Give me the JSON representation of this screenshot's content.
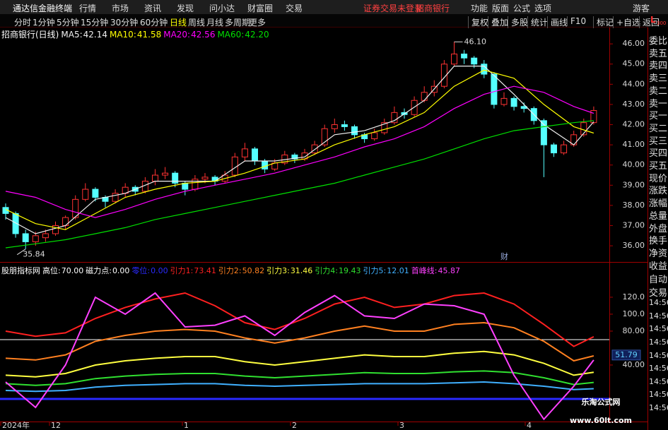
{
  "menu": {
    "app": "通达信金融终端",
    "items": [
      "行情",
      "市场",
      "资讯",
      "发现",
      "问小达",
      "财富圈",
      "交易"
    ],
    "status": [
      "证券交易未登录",
      "招商银行"
    ],
    "right": [
      "功能",
      "版面",
      "公式",
      "选项"
    ],
    "user": "游客"
  },
  "toolbar": {
    "periods": [
      "分时",
      "1分钟",
      "5分钟",
      "15分钟",
      "30分钟",
      "60分钟",
      "日线",
      "周线",
      "月线",
      "多周期",
      "更多"
    ],
    "active_index": 6,
    "right": [
      "复权",
      "叠加",
      "多股",
      "统计",
      "画线",
      "F10",
      "标记",
      "+自选",
      "返回"
    ],
    "badge": [
      "L",
      "300"
    ]
  },
  "side_panel": {
    "quote_items": [
      "委比",
      "卖五",
      "卖四",
      "卖三",
      "卖二",
      "卖一",
      "买一",
      "买二",
      "买三",
      "买四",
      "买五",
      "现价",
      "涨跌",
      "涨幅",
      "总量",
      "外盘",
      "换手",
      "净资",
      "收益"
    ],
    "trade_items": [
      "自动",
      "交易",
      "14:56",
      "14:56",
      "14:56",
      "14:56",
      "14:56",
      "14:56",
      "14:56",
      "14:56",
      "14:56"
    ]
  },
  "x_labels": [
    "2024年",
    "12",
    "1",
    "2",
    "3",
    "4"
  ],
  "watermark": [
    "乐淘公式网",
    "www.60lt.com"
  ],
  "chart_data": [
    {
      "type": "candlestick",
      "title": "招商银行(日线)",
      "up_color": "#ff3232",
      "down_color": "#54ffff",
      "candles": [
        [
          37.9,
          38.1,
          37.3,
          37.6
        ],
        [
          37.6,
          37.7,
          36.4,
          36.6
        ],
        [
          36.6,
          36.8,
          35.84,
          36.2
        ],
        [
          36.2,
          36.7,
          36.0,
          36.5
        ],
        [
          36.4,
          36.8,
          36.2,
          36.6
        ],
        [
          36.6,
          37.2,
          36.5,
          37.0
        ],
        [
          37.0,
          37.5,
          36.8,
          37.4
        ],
        [
          37.4,
          38.5,
          37.3,
          38.3
        ],
        [
          38.3,
          39.1,
          38.2,
          38.8
        ],
        [
          38.8,
          38.9,
          38.2,
          38.4
        ],
        [
          38.4,
          38.5,
          37.9,
          38.2
        ],
        [
          38.2,
          38.8,
          38.1,
          38.6
        ],
        [
          38.6,
          39.1,
          38.4,
          38.9
        ],
        [
          38.9,
          39.0,
          38.5,
          38.7
        ],
        [
          38.7,
          39.4,
          38.6,
          39.2
        ],
        [
          39.2,
          39.8,
          39.0,
          39.5
        ],
        [
          39.5,
          39.9,
          39.3,
          39.6
        ],
        [
          39.6,
          39.7,
          38.9,
          39.1
        ],
        [
          39.1,
          39.2,
          38.5,
          38.8
        ],
        [
          38.8,
          39.5,
          38.7,
          39.3
        ],
        [
          39.3,
          39.6,
          39.1,
          39.4
        ],
        [
          39.4,
          39.5,
          39.0,
          39.2
        ],
        [
          39.2,
          39.7,
          39.1,
          39.5
        ],
        [
          39.5,
          40.6,
          39.4,
          40.4
        ],
        [
          40.4,
          41.1,
          40.2,
          40.8
        ],
        [
          40.8,
          40.9,
          40.0,
          40.2
        ],
        [
          40.2,
          40.3,
          39.6,
          39.8
        ],
        [
          39.8,
          40.3,
          39.7,
          40.1
        ],
        [
          40.1,
          40.7,
          40.0,
          40.5
        ],
        [
          40.5,
          40.6,
          40.1,
          40.3
        ],
        [
          40.3,
          40.8,
          40.2,
          40.6
        ],
        [
          40.6,
          41.2,
          40.5,
          41.0
        ],
        [
          41.0,
          42.0,
          40.9,
          41.8
        ],
        [
          41.8,
          42.3,
          41.6,
          42.0
        ],
        [
          42.0,
          42.2,
          41.7,
          41.9
        ],
        [
          41.9,
          42.0,
          41.3,
          41.5
        ],
        [
          41.5,
          41.6,
          41.1,
          41.3
        ],
        [
          41.3,
          41.8,
          41.2,
          41.6
        ],
        [
          41.6,
          42.3,
          41.5,
          42.1
        ],
        [
          42.1,
          42.9,
          42.0,
          42.6
        ],
        [
          42.6,
          42.8,
          42.3,
          42.5
        ],
        [
          42.5,
          43.4,
          42.4,
          43.2
        ],
        [
          43.2,
          43.9,
          43.1,
          43.6
        ],
        [
          43.6,
          44.2,
          43.4,
          43.9
        ],
        [
          43.9,
          45.2,
          43.8,
          45.0
        ],
        [
          45.0,
          46.1,
          44.9,
          45.5
        ],
        [
          45.5,
          45.7,
          45.0,
          45.3
        ],
        [
          45.3,
          45.4,
          44.8,
          45.0
        ],
        [
          45.0,
          45.2,
          44.3,
          44.5
        ],
        [
          44.5,
          44.6,
          42.8,
          43.0
        ],
        [
          43.0,
          43.6,
          42.9,
          43.3
        ],
        [
          43.3,
          43.4,
          42.7,
          42.9
        ],
        [
          42.9,
          43.1,
          42.6,
          42.8
        ],
        [
          42.8,
          42.9,
          42.0,
          42.2
        ],
        [
          42.2,
          42.3,
          39.4,
          41.0
        ],
        [
          41.0,
          41.1,
          40.4,
          40.6
        ],
        [
          40.6,
          41.2,
          40.5,
          41.0
        ],
        [
          41.0,
          41.7,
          40.9,
          41.5
        ],
        [
          41.5,
          42.3,
          41.4,
          42.1
        ],
        [
          42.1,
          42.9,
          42.0,
          42.7
        ]
      ],
      "ma_x": [
        0,
        3,
        6,
        9,
        12,
        15,
        18,
        21,
        24,
        27,
        30,
        33,
        36,
        39,
        42,
        45,
        48,
        51,
        54,
        57,
        59
      ],
      "series": [
        {
          "name": "MA5:",
          "legend_label": "42.14",
          "color": "#f0f0f0",
          "values": [
            37.4,
            36.6,
            37.0,
            38.3,
            38.6,
            39.2,
            39.2,
            39.2,
            40.2,
            40.2,
            40.4,
            41.5,
            41.7,
            42.2,
            43.2,
            44.9,
            44.9,
            43.5,
            42.0,
            41.0,
            42.14
          ]
        },
        {
          "name": "MA10:",
          "legend_label": "41.58",
          "color": "#ffff00",
          "values": [
            37.8,
            37.1,
            36.8,
            37.6,
            38.4,
            38.8,
            39.1,
            39.2,
            39.6,
            40.1,
            40.3,
            41.0,
            41.5,
            41.9,
            42.6,
            43.9,
            44.7,
            44.3,
            43.0,
            41.9,
            41.58
          ]
        },
        {
          "name": "MA20:",
          "legend_label": "42.56",
          "color": "#ff00ff",
          "values": [
            38.7,
            38.4,
            37.8,
            37.4,
            37.8,
            38.3,
            38.7,
            39.0,
            39.3,
            39.6,
            40.0,
            40.4,
            40.9,
            41.3,
            41.9,
            42.8,
            43.5,
            43.9,
            43.6,
            42.9,
            42.56
          ]
        },
        {
          "name": "MA60:",
          "legend_label": "42.20",
          "color": "#00e000",
          "values": [
            35.9,
            36.1,
            36.3,
            36.6,
            36.9,
            37.3,
            37.6,
            37.9,
            38.2,
            38.5,
            38.8,
            39.1,
            39.5,
            39.9,
            40.3,
            40.8,
            41.3,
            41.7,
            41.9,
            42.1,
            42.2
          ]
        }
      ],
      "ylim": [
        35.2,
        46.25
      ],
      "yticks": [
        {
          "value": 46,
          "label": "46.00"
        },
        {
          "value": 45,
          "label": "45.00"
        },
        {
          "value": 44,
          "label": "44.00"
        },
        {
          "value": 43,
          "label": "43.00"
        },
        {
          "value": 42,
          "label": "42.00"
        },
        {
          "value": 41,
          "label": "41.00"
        },
        {
          "value": 40,
          "label": "40.00"
        },
        {
          "value": 39,
          "label": "39.00"
        },
        {
          "value": 38,
          "label": "38.00"
        },
        {
          "value": 37,
          "label": "37.00"
        },
        {
          "value": 36,
          "label": "36.00"
        }
      ],
      "annotations": [
        {
          "text": "46.10",
          "value": 46.1,
          "x": 45
        },
        {
          "text": "35.84",
          "value": 35.84,
          "x": 2
        },
        {
          "text": "财",
          "x": 50
        }
      ]
    },
    {
      "type": "line",
      "title": "股朋指标网",
      "x": [
        0,
        3,
        6,
        9,
        12,
        15,
        18,
        21,
        24,
        27,
        30,
        33,
        36,
        39,
        42,
        45,
        48,
        51,
        54,
        57,
        59
      ],
      "levels": [
        {
          "name": "高位:",
          "value": 70,
          "label": "70.00",
          "color": "#ffffff"
        },
        {
          "name": "磁力点:",
          "value": 0,
          "label": "0.00",
          "color": "#ffffff"
        },
        {
          "name": "零位:",
          "value": 0,
          "label": "0.00",
          "color": "#2a2aff"
        }
      ],
      "series": [
        {
          "name": "引力1:",
          "color": "#ff2020",
          "values": [
            80,
            74,
            78,
            95,
            108,
            118,
            125,
            110,
            90,
            82,
            95,
            112,
            120,
            108,
            112,
            122,
            125,
            112,
            88,
            62,
            73.41
          ]
        },
        {
          "name": "引力2:",
          "color": "#ff8020",
          "values": [
            48,
            46,
            52,
            68,
            75,
            80,
            82,
            80,
            72,
            66,
            72,
            80,
            86,
            80,
            80,
            88,
            90,
            84,
            68,
            45,
            50.82
          ]
        },
        {
          "name": "引力3:",
          "color": "#ffff40",
          "values": [
            28,
            26,
            30,
            40,
            45,
            48,
            50,
            50,
            44,
            40,
            44,
            48,
            52,
            50,
            50,
            54,
            56,
            52,
            42,
            28,
            31.46
          ]
        },
        {
          "name": "引力4:",
          "color": "#30e030",
          "values": [
            18,
            16,
            18,
            24,
            27,
            29,
            30,
            30,
            27,
            25,
            27,
            29,
            31,
            30,
            30,
            32,
            33,
            31,
            25,
            17,
            19.43
          ]
        },
        {
          "name": "引力5:",
          "color": "#40b0ff",
          "values": [
            10,
            9,
            10,
            14,
            16,
            17,
            18,
            18,
            16,
            15,
            16,
            17,
            18,
            18,
            18,
            19,
            20,
            18,
            15,
            11,
            12.01
          ]
        },
        {
          "name": "首峰线:",
          "color": "#ff40ff",
          "values": [
            20,
            -10,
            40,
            120,
            100,
            125,
            85,
            87,
            98,
            75,
            102,
            122,
            98,
            95,
            112,
            110,
            100,
            28,
            -24,
            15,
            45.87
          ]
        }
      ],
      "ylim": [
        -26.7,
        158.3
      ],
      "yticks": [
        {
          "value": 120,
          "label": "120.0"
        },
        {
          "value": 100,
          "label": "100.0"
        },
        {
          "value": 80,
          "label": "80.00"
        },
        {
          "value": 40,
          "label": "40.00"
        }
      ],
      "marker": 51.79
    }
  ]
}
